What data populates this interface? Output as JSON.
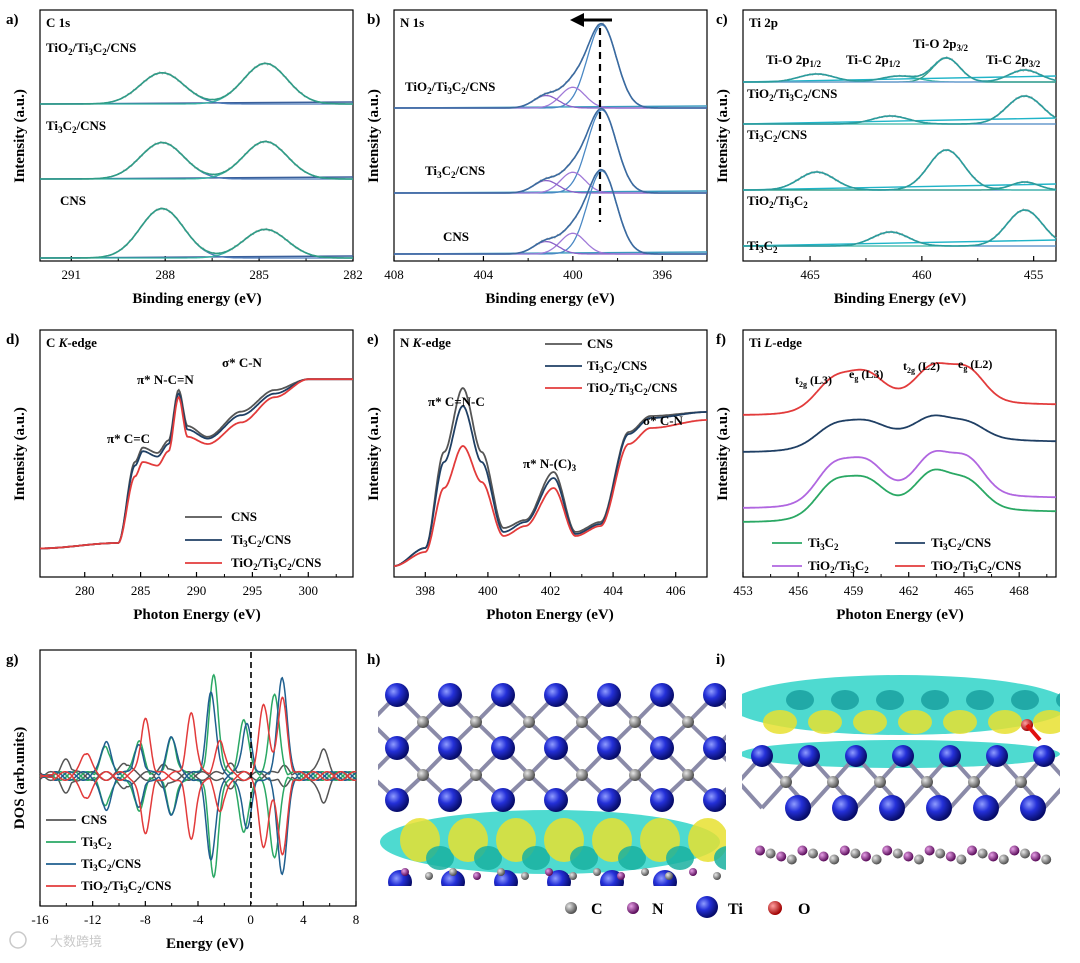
{
  "figure": {
    "watermark": "大数跨境",
    "legend_atoms": [
      "C",
      "N",
      "Ti",
      "O"
    ],
    "atom_colors": {
      "C": "#8a8a8a",
      "N": "#8e2a8e",
      "Ti": "#1f2fd0",
      "O": "#e01010"
    }
  },
  "panels": {
    "a": {
      "letter": "a)",
      "title": "C 1s",
      "ylabel": "Intensity (a.u.)",
      "xlabel": "Binding energy (eV)",
      "labels": [
        "TiO₂/Ti₃C₂/CNS",
        "Ti₃C₂/CNS",
        "CNS"
      ]
    },
    "b": {
      "letter": "b)",
      "title": "N 1s",
      "ylabel": "Intensity (a.u.)",
      "xlabel": "Binding energy (eV)",
      "labels": [
        "TiO₂/Ti₃C₂/CNS",
        "Ti₃C₂/CNS",
        "CNS"
      ]
    },
    "c": {
      "letter": "c)",
      "title": "Ti 2p",
      "ylabel": "Intensity (a.u.)",
      "xlabel": "Binding Energy (eV)",
      "labels": [
        "TiO₂/Ti₃C₂/CNS",
        "Ti₃C₂/CNS",
        "TiO₂/Ti₃C₂",
        "Ti₃C₂"
      ],
      "peaks": [
        "Ti-O 2p1/2",
        "Ti-C 2p1/2",
        "Ti-O 2p3/2",
        "Ti-C 2p3/2"
      ]
    },
    "d": {
      "letter": "d)",
      "title": "C K-edge",
      "ylabel": "Intensity (a.u.)",
      "xlabel": "Photon Energy (eV)",
      "annotations": [
        "π* C=C",
        "π* N-C=N",
        "σ* C-N"
      ],
      "legend": [
        "CNS",
        "Ti₃C₂/CNS",
        "TiO₂/Ti₃C₂/CNS"
      ]
    },
    "e": {
      "letter": "e)",
      "title": "N K-edge",
      "ylabel": "Intensity (a.u.)",
      "xlabel": "Photon Energy (eV)",
      "annotations": [
        "π* C=N-C",
        "π* N-(C)₃",
        "σ* C-N"
      ],
      "legend": [
        "CNS",
        "Ti₃C₂/CNS",
        "TiO₂/Ti₃C₂/CNS"
      ]
    },
    "f": {
      "letter": "f)",
      "title": "Ti L-edge",
      "ylabel": "Intensity (a.u.)",
      "xlabel": "Photon Energy (eV)",
      "annotations": [
        "t2g (L3)",
        "eg (L3)",
        "t2g (L2)",
        "eg (L2)"
      ],
      "legend": [
        "Ti₃C₂",
        "Ti₃C₂/CNS",
        "TiO₂/Ti₃C₂",
        "TiO₂/Ti₃C₂/CNS"
      ]
    },
    "g": {
      "letter": "g)",
      "ylabel": "DOS (arb.units)",
      "xlabel": "Energy (eV)",
      "legend": [
        "CNS",
        "Ti₃C₂",
        "Ti₃C₂/CNS",
        "TiO₂/Ti₃C₂/CNS"
      ]
    },
    "h": {
      "letter": "h)"
    },
    "i": {
      "letter": "i)"
    }
  },
  "chart_data": [
    {
      "panel": "a",
      "type": "line",
      "xlabel": "Binding energy (eV)",
      "ylabel": "Intensity (a.u.)",
      "xlim": [
        292,
        282
      ],
      "reversed_x": true,
      "xticks": [
        291,
        288,
        285,
        282
      ],
      "series": [
        {
          "name": "TiO₂/Ti₃C₂/CNS",
          "peaks": [
            {
              "center": 288.1,
              "height": 0.6
            },
            {
              "center": 284.8,
              "height": 0.78
            }
          ]
        },
        {
          "name": "Ti₃C₂/CNS",
          "peaks": [
            {
              "center": 288.1,
              "height": 0.7
            },
            {
              "center": 284.8,
              "height": 0.72
            }
          ]
        },
        {
          "name": "CNS",
          "peaks": [
            {
              "center": 288.1,
              "height": 0.95
            },
            {
              "center": 284.8,
              "height": 0.55
            }
          ]
        }
      ]
    },
    {
      "panel": "b",
      "type": "line",
      "xlabel": "Binding energy (eV)",
      "ylabel": "Intensity (a.u.)",
      "xlim": [
        408,
        394
      ],
      "reversed_x": true,
      "xticks": [
        408,
        404,
        400,
        396
      ],
      "series": [
        {
          "name": "TiO₂/Ti₃C₂/CNS",
          "peaks": [
            {
              "center": 398.7,
              "height": 1.0
            },
            {
              "center": 400.0,
              "height": 0.25
            },
            {
              "center": 401.2,
              "height": 0.15
            }
          ]
        },
        {
          "name": "Ti₃C₂/CNS",
          "peaks": [
            {
              "center": 398.7,
              "height": 1.0
            },
            {
              "center": 400.0,
              "height": 0.25
            },
            {
              "center": 401.2,
              "height": 0.15
            }
          ]
        },
        {
          "name": "CNS",
          "peaks": [
            {
              "center": 398.7,
              "height": 1.0
            },
            {
              "center": 400.0,
              "height": 0.25
            },
            {
              "center": 401.2,
              "height": 0.15
            }
          ]
        }
      ]
    },
    {
      "panel": "c",
      "type": "line",
      "xlabel": "Binding Energy (eV)",
      "ylabel": "Intensity (a.u.)",
      "xlim": [
        468,
        454
      ],
      "reversed_x": true,
      "xticks": [
        465,
        460,
        455
      ],
      "series": [
        {
          "name": "TiO₂/Ti₃C₂/CNS",
          "peaks": [
            {
              "center": 464.7,
              "height": 0.2
            },
            {
              "center": 461.0,
              "height": 0.15
            },
            {
              "center": 458.9,
              "height": 0.6
            },
            {
              "center": 455.4,
              "height": 0.3
            }
          ]
        },
        {
          "name": "Ti₃C₂/CNS",
          "peaks": [
            {
              "center": 461.4,
              "height": 0.2
            },
            {
              "center": 455.4,
              "height": 0.7
            }
          ]
        },
        {
          "name": "TiO₂/Ti₃C₂",
          "peaks": [
            {
              "center": 464.7,
              "height": 0.45
            },
            {
              "center": 458.9,
              "height": 1.0
            },
            {
              "center": 455.4,
              "height": 0.2
            }
          ]
        },
        {
          "name": "Ti₃C₂",
          "peaks": [
            {
              "center": 461.4,
              "height": 0.35
            },
            {
              "center": 455.4,
              "height": 0.9
            }
          ]
        }
      ]
    },
    {
      "panel": "d",
      "type": "line",
      "xlabel": "Photon Energy (eV)",
      "ylabel": "Intensity (a.u.)",
      "xlim": [
        276,
        304
      ],
      "xticks": [
        280,
        285,
        290,
        295,
        300
      ],
      "series": [
        {
          "name": "CNS",
          "x": [
            276,
            283,
            284.5,
            285.2,
            286.5,
            287.5,
            288.4,
            289.2,
            291,
            294,
            297,
            300,
            304
          ],
          "y": [
            0.02,
            0.05,
            0.5,
            0.58,
            0.55,
            0.62,
            0.9,
            0.7,
            0.64,
            0.78,
            0.9,
            0.96,
            0.96
          ]
        },
        {
          "name": "Ti₃C₂/CNS",
          "x": [
            276,
            283,
            284.5,
            285.2,
            286.5,
            287.5,
            288.4,
            289.2,
            291,
            294,
            297,
            300,
            304
          ],
          "y": [
            0.02,
            0.05,
            0.48,
            0.56,
            0.53,
            0.6,
            0.88,
            0.68,
            0.63,
            0.76,
            0.88,
            0.96,
            0.96
          ]
        },
        {
          "name": "TiO₂/Ti₃C₂/CNS",
          "x": [
            276,
            283,
            284.5,
            285.2,
            286.5,
            287.5,
            288.4,
            289.2,
            291,
            294,
            297,
            300,
            304
          ],
          "y": [
            0.02,
            0.05,
            0.42,
            0.5,
            0.48,
            0.56,
            0.86,
            0.64,
            0.6,
            0.72,
            0.86,
            0.96,
            0.96
          ]
        }
      ]
    },
    {
      "panel": "e",
      "type": "line",
      "xlabel": "Photon Energy (eV)",
      "ylabel": "Intensity (a.u.)",
      "xlim": [
        397,
        407
      ],
      "xticks": [
        398,
        400,
        402,
        404,
        406
      ],
      "series": [
        {
          "name": "CNS",
          "x": [
            397,
            398,
            398.6,
            399.2,
            399.8,
            400.5,
            401.2,
            402.1,
            402.8,
            403.6,
            404.5,
            405.2,
            407
          ],
          "y": [
            0.03,
            0.12,
            0.6,
            0.92,
            0.6,
            0.22,
            0.26,
            0.5,
            0.2,
            0.25,
            0.7,
            0.78,
            0.8
          ]
        },
        {
          "name": "Ti₃C₂/CNS",
          "x": [
            397,
            398,
            398.6,
            399.2,
            399.8,
            400.5,
            401.2,
            402.1,
            402.8,
            403.6,
            404.5,
            405.2,
            407
          ],
          "y": [
            0.03,
            0.12,
            0.55,
            0.83,
            0.55,
            0.2,
            0.25,
            0.47,
            0.19,
            0.24,
            0.69,
            0.77,
            0.8
          ]
        },
        {
          "name": "TiO₂/Ti₃C₂/CNS",
          "x": [
            397,
            398,
            398.6,
            399.2,
            399.8,
            400.5,
            401.2,
            402.1,
            402.8,
            403.6,
            404.5,
            405.2,
            407
          ],
          "y": [
            0.03,
            0.1,
            0.42,
            0.63,
            0.45,
            0.18,
            0.23,
            0.42,
            0.18,
            0.23,
            0.64,
            0.72,
            0.76
          ]
        }
      ]
    },
    {
      "panel": "f",
      "type": "line",
      "xlabel": "Photon Energy (eV)",
      "ylabel": "Intensity (a.u.)",
      "xlim": [
        453,
        470
      ],
      "xticks": [
        453,
        456,
        459,
        462,
        465,
        468
      ],
      "series": [
        {
          "name": "Ti₃C₂",
          "peaks": [
            {
              "center": 457.9,
              "height": 0.3
            },
            {
              "center": 459.7,
              "height": 0.28
            },
            {
              "center": 463.3,
              "height": 0.38
            },
            {
              "center": 465.2,
              "height": 0.3
            }
          ]
        },
        {
          "name": "Ti₃C₂/CNS",
          "peaks": [
            {
              "center": 457.9,
              "height": 0.15
            },
            {
              "center": 459.7,
              "height": 0.14
            },
            {
              "center": 463.3,
              "height": 0.2
            },
            {
              "center": 465.2,
              "height": 0.16
            }
          ]
        },
        {
          "name": "TiO₂/Ti₃C₂",
          "peaks": [
            {
              "center": 457.9,
              "height": 0.34
            },
            {
              "center": 459.7,
              "height": 0.33
            },
            {
              "center": 463.3,
              "height": 0.42
            },
            {
              "center": 465.2,
              "height": 0.4
            }
          ]
        },
        {
          "name": "TiO₂/Ti₃C₂/CNS",
          "peaks": [
            {
              "center": 457.9,
              "height": 0.26
            },
            {
              "center": 459.7,
              "height": 0.28
            },
            {
              "center": 463.3,
              "height": 0.36
            },
            {
              "center": 465.2,
              "height": 0.36
            }
          ]
        }
      ]
    },
    {
      "panel": "g",
      "type": "line",
      "xlabel": "Energy (eV)",
      "ylabel": "DOS (arb.units)",
      "xlim": [
        -16,
        8
      ],
      "xticks": [
        -16,
        -12,
        -8,
        -4,
        0,
        4,
        8
      ],
      "fermi_level": 0,
      "series": [
        {
          "name": "CNS",
          "peaks": [
            {
              "center": -14,
              "height": 0.12
            },
            {
              "center": -9.5,
              "height": 0.1
            },
            {
              "center": -6.5,
              "height": 0.08
            },
            {
              "center": -1.5,
              "height": 0.08
            },
            {
              "center": 2.5,
              "height": 0.06
            },
            {
              "center": 5.5,
              "height": 0.22
            }
          ]
        },
        {
          "name": "Ti₃C₂",
          "peaks": [
            {
              "center": -11,
              "height": 0.25
            },
            {
              "center": -8.5,
              "height": 0.3
            },
            {
              "center": -6,
              "height": 0.32
            },
            {
              "center": -2.8,
              "height": 0.9
            },
            {
              "center": -0.5,
              "height": 0.5
            },
            {
              "center": 1.8,
              "height": 0.75
            }
          ]
        },
        {
          "name": "Ti₃C₂/CNS",
          "peaks": [
            {
              "center": -11,
              "height": 0.3
            },
            {
              "center": -8.5,
              "height": 0.25
            },
            {
              "center": -6,
              "height": 0.35
            },
            {
              "center": -3,
              "height": 0.75
            },
            {
              "center": -0.3,
              "height": 0.45
            },
            {
              "center": 2.4,
              "height": 0.9
            }
          ]
        },
        {
          "name": "TiO₂/Ti₃C₂/CNS",
          "peaks": [
            {
              "center": -12.5,
              "height": 0.2
            },
            {
              "center": -8,
              "height": 0.5
            },
            {
              "center": -4.5,
              "height": 0.55
            },
            {
              "center": -2.3,
              "height": 0.3
            },
            {
              "center": 1,
              "height": 0.65
            },
            {
              "center": 2.4,
              "height": 0.7
            }
          ]
        }
      ]
    }
  ]
}
